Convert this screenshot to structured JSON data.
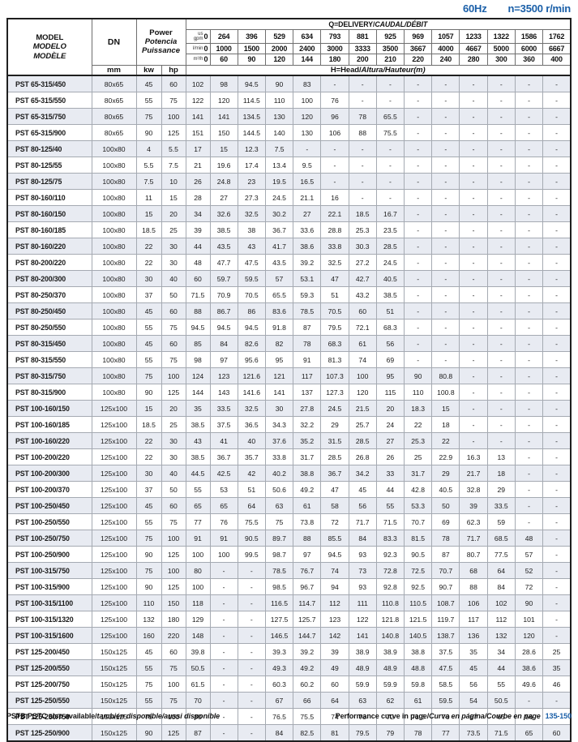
{
  "page_header": {
    "frequency": "60Hz",
    "speed": "n=3500 r/min",
    "accent_color": "#1a5fa8"
  },
  "table": {
    "header": {
      "model_lines": [
        "MODEL",
        "MODELO",
        "MODÈLE"
      ],
      "dn_label": "DN",
      "dn_unit": "mm",
      "power_lines": [
        "Power",
        "Potencia",
        "Puissance"
      ],
      "power_unit_kw": "kw",
      "power_unit_hp": "hp",
      "q_title_normal": "Q=DELIVERY/",
      "q_title_italic": "CAUDAL/DÉBIT",
      "h_title_normal": "H=Head/",
      "h_title_italic": "Altura/Hauteur(m)",
      "flow_rows": [
        {
          "unit": "us gpm",
          "zero": "0",
          "values": [
            "264",
            "396",
            "529",
            "634",
            "793",
            "881",
            "925",
            "969",
            "1057",
            "1233",
            "1322",
            "1586",
            "1762"
          ]
        },
        {
          "unit": "l/min",
          "zero": "0",
          "values": [
            "1000",
            "1500",
            "2000",
            "2400",
            "3000",
            "3333",
            "3500",
            "3667",
            "4000",
            "4667",
            "5000",
            "6000",
            "6667"
          ]
        },
        {
          "unit": "m³/h",
          "zero": "0",
          "values": [
            "60",
            "90",
            "120",
            "144",
            "180",
            "200",
            "210",
            "220",
            "240",
            "280",
            "300",
            "360",
            "400"
          ]
        }
      ]
    },
    "rows": [
      {
        "model": "PST 65-315/450",
        "dn": "80x65",
        "kw": "45",
        "hp": "60",
        "h": [
          "102",
          "98",
          "94.5",
          "90",
          "83",
          "-",
          "-",
          "-",
          "-",
          "-",
          "-",
          "-",
          "-",
          "-"
        ]
      },
      {
        "model": "PST 65-315/550",
        "dn": "80x65",
        "kw": "55",
        "hp": "75",
        "h": [
          "122",
          "120",
          "114.5",
          "110",
          "100",
          "76",
          "-",
          "-",
          "-",
          "-",
          "-",
          "-",
          "-",
          "-"
        ]
      },
      {
        "model": "PST 65-315/750",
        "dn": "80x65",
        "kw": "75",
        "hp": "100",
        "h": [
          "141",
          "141",
          "134.5",
          "130",
          "120",
          "96",
          "78",
          "65.5",
          "-",
          "-",
          "-",
          "-",
          "-",
          "-"
        ]
      },
      {
        "model": "PST 65-315/900",
        "dn": "80x65",
        "kw": "90",
        "hp": "125",
        "h": [
          "151",
          "150",
          "144.5",
          "140",
          "130",
          "106",
          "88",
          "75.5",
          "-",
          "-",
          "-",
          "-",
          "-",
          "-"
        ]
      },
      {
        "model": "PST 80-125/40",
        "dn": "100x80",
        "kw": "4",
        "hp": "5.5",
        "h": [
          "17",
          "15",
          "12.3",
          "7.5",
          "-",
          "-",
          "-",
          "-",
          "-",
          "-",
          "-",
          "-",
          "-",
          "-"
        ],
        "group_start": true
      },
      {
        "model": "PST 80-125/55",
        "dn": "100x80",
        "kw": "5.5",
        "hp": "7.5",
        "h": [
          "21",
          "19.6",
          "17.4",
          "13.4",
          "9.5",
          "-",
          "-",
          "-",
          "-",
          "-",
          "-",
          "-",
          "-",
          "-"
        ]
      },
      {
        "model": "PST 80-125/75",
        "dn": "100x80",
        "kw": "7.5",
        "hp": "10",
        "h": [
          "26",
          "24.8",
          "23",
          "19.5",
          "16.5",
          "-",
          "-",
          "-",
          "-",
          "-",
          "-",
          "-",
          "-",
          "-"
        ]
      },
      {
        "model": "PST 80-160/110",
        "dn": "100x80",
        "kw": "11",
        "hp": "15",
        "h": [
          "28",
          "27",
          "27.3",
          "24.5",
          "21.1",
          "16",
          "-",
          "-",
          "-",
          "-",
          "-",
          "-",
          "-",
          "-"
        ]
      },
      {
        "model": "PST 80-160/150",
        "dn": "100x80",
        "kw": "15",
        "hp": "20",
        "h": [
          "34",
          "32.6",
          "32.5",
          "30.2",
          "27",
          "22.1",
          "18.5",
          "16.7",
          "-",
          "-",
          "-",
          "-",
          "-",
          "-"
        ]
      },
      {
        "model": "PST 80-160/185",
        "dn": "100x80",
        "kw": "18.5",
        "hp": "25",
        "h": [
          "39",
          "38.5",
          "38",
          "36.7",
          "33.6",
          "28.8",
          "25.3",
          "23.5",
          "-",
          "-",
          "-",
          "-",
          "-",
          "-"
        ]
      },
      {
        "model": "PST 80-160/220",
        "dn": "100x80",
        "kw": "22",
        "hp": "30",
        "h": [
          "44",
          "43.5",
          "43",
          "41.7",
          "38.6",
          "33.8",
          "30.3",
          "28.5",
          "-",
          "-",
          "-",
          "-",
          "-",
          "-"
        ]
      },
      {
        "model": "PST 80-200/220",
        "dn": "100x80",
        "kw": "22",
        "hp": "30",
        "h": [
          "48",
          "47.7",
          "47.5",
          "43.5",
          "39.2",
          "32.5",
          "27.2",
          "24.5",
          "-",
          "-",
          "-",
          "-",
          "-",
          "-"
        ]
      },
      {
        "model": "PST 80-200/300",
        "dn": "100x80",
        "kw": "30",
        "hp": "40",
        "h": [
          "60",
          "59.7",
          "59.5",
          "57",
          "53.1",
          "47",
          "42.7",
          "40.5",
          "-",
          "-",
          "-",
          "-",
          "-",
          "-"
        ]
      },
      {
        "model": "PST 80-250/370",
        "dn": "100x80",
        "kw": "37",
        "hp": "50",
        "h": [
          "71.5",
          "70.9",
          "70.5",
          "65.5",
          "59.3",
          "51",
          "43.2",
          "38.5",
          "-",
          "-",
          "-",
          "-",
          "-",
          "-"
        ]
      },
      {
        "model": "PST 80-250/450",
        "dn": "100x80",
        "kw": "45",
        "hp": "60",
        "h": [
          "88",
          "86.7",
          "86",
          "83.6",
          "78.5",
          "70.5",
          "60",
          "51",
          "-",
          "-",
          "-",
          "-",
          "-",
          "-"
        ]
      },
      {
        "model": "PST 80-250/550",
        "dn": "100x80",
        "kw": "55",
        "hp": "75",
        "h": [
          "94.5",
          "94.5",
          "94.5",
          "91.8",
          "87",
          "79.5",
          "72.1",
          "68.3",
          "-",
          "-",
          "-",
          "-",
          "-",
          "-"
        ]
      },
      {
        "model": "PST 80-315/450",
        "dn": "100x80",
        "kw": "45",
        "hp": "60",
        "h": [
          "85",
          "84",
          "82.6",
          "82",
          "78",
          "68.3",
          "61",
          "56",
          "-",
          "-",
          "-",
          "-",
          "-",
          "-"
        ]
      },
      {
        "model": "PST 80-315/550",
        "dn": "100x80",
        "kw": "55",
        "hp": "75",
        "h": [
          "98",
          "97",
          "95.6",
          "95",
          "91",
          "81.3",
          "74",
          "69",
          "-",
          "-",
          "-",
          "-",
          "-",
          "-"
        ]
      },
      {
        "model": "PST 80-315/750",
        "dn": "100x80",
        "kw": "75",
        "hp": "100",
        "h": [
          "124",
          "123",
          "121.6",
          "121",
          "117",
          "107.3",
          "100",
          "95",
          "90",
          "80.8",
          "-",
          "-",
          "-",
          "-"
        ]
      },
      {
        "model": "PST 80-315/900",
        "dn": "100x80",
        "kw": "90",
        "hp": "125",
        "h": [
          "144",
          "143",
          "141.6",
          "141",
          "137",
          "127.3",
          "120",
          "115",
          "110",
          "100.8",
          "-",
          "-",
          "-",
          "-"
        ]
      },
      {
        "model": "PST 100-160/150",
        "dn": "125x100",
        "kw": "15",
        "hp": "20",
        "h": [
          "35",
          "33.5",
          "32.5",
          "30",
          "27.8",
          "24.5",
          "21.5",
          "20",
          "18.3",
          "15",
          "-",
          "-",
          "-",
          "-"
        ],
        "group_start": true
      },
      {
        "model": "PST 100-160/185",
        "dn": "125x100",
        "kw": "18.5",
        "hp": "25",
        "h": [
          "38.5",
          "37.5",
          "36.5",
          "34.3",
          "32.2",
          "29",
          "25.7",
          "24",
          "22",
          "18",
          "-",
          "-",
          "-",
          "-"
        ]
      },
      {
        "model": "PST 100-160/220",
        "dn": "125x100",
        "kw": "22",
        "hp": "30",
        "h": [
          "43",
          "41",
          "40",
          "37.6",
          "35.2",
          "31.5",
          "28.5",
          "27",
          "25.3",
          "22",
          "-",
          "-",
          "-",
          "-"
        ]
      },
      {
        "model": "PST 100-200/220",
        "dn": "125x100",
        "kw": "22",
        "hp": "30",
        "h": [
          "38.5",
          "36.7",
          "35.7",
          "33.8",
          "31.7",
          "28.5",
          "26.8",
          "26",
          "25",
          "22.9",
          "16.3",
          "13",
          "-",
          "-"
        ]
      },
      {
        "model": "PST 100-200/300",
        "dn": "125x100",
        "kw": "30",
        "hp": "40",
        "h": [
          "44.5",
          "42.5",
          "42",
          "40.2",
          "38.8",
          "36.7",
          "34.2",
          "33",
          "31.7",
          "29",
          "21.7",
          "18",
          "-",
          "-"
        ]
      },
      {
        "model": "PST 100-200/370",
        "dn": "125x100",
        "kw": "37",
        "hp": "50",
        "h": [
          "55",
          "53",
          "51",
          "50.6",
          "49.2",
          "47",
          "45",
          "44",
          "42.8",
          "40.5",
          "32.8",
          "29",
          "-",
          "-"
        ]
      },
      {
        "model": "PST 100-250/450",
        "dn": "125x100",
        "kw": "45",
        "hp": "60",
        "h": [
          "65",
          "65",
          "64",
          "63",
          "61",
          "58",
          "56",
          "55",
          "53.3",
          "50",
          "39",
          "33.5",
          "-",
          "-"
        ]
      },
      {
        "model": "PST 100-250/550",
        "dn": "125x100",
        "kw": "55",
        "hp": "75",
        "h": [
          "77",
          "76",
          "75.5",
          "75",
          "73.8",
          "72",
          "71.7",
          "71.5",
          "70.7",
          "69",
          "62.3",
          "59",
          "-",
          "-"
        ]
      },
      {
        "model": "PST 100-250/750",
        "dn": "125x100",
        "kw": "75",
        "hp": "100",
        "h": [
          "91",
          "91",
          "90.5",
          "89.7",
          "88",
          "85.5",
          "84",
          "83.3",
          "81.5",
          "78",
          "71.7",
          "68.5",
          "48",
          "-"
        ]
      },
      {
        "model": "PST 100-250/900",
        "dn": "125x100",
        "kw": "90",
        "hp": "125",
        "h": [
          "100",
          "100",
          "99.5",
          "98.7",
          "97",
          "94.5",
          "93",
          "92.3",
          "90.5",
          "87",
          "80.7",
          "77.5",
          "57",
          "-"
        ]
      },
      {
        "model": "PST 100-315/750",
        "dn": "125x100",
        "kw": "75",
        "hp": "100",
        "h": [
          "80",
          "-",
          "-",
          "78.5",
          "76.7",
          "74",
          "73",
          "72.8",
          "72.5",
          "70.7",
          "68",
          "64",
          "52",
          "-"
        ]
      },
      {
        "model": "PST 100-315/900",
        "dn": "125x100",
        "kw": "90",
        "hp": "125",
        "h": [
          "100",
          "-",
          "-",
          "98.5",
          "96.7",
          "94",
          "93",
          "92.8",
          "92.5",
          "90.7",
          "88",
          "84",
          "72",
          "-"
        ]
      },
      {
        "model": "PST 100-315/1100",
        "dn": "125x100",
        "kw": "110",
        "hp": "150",
        "h": [
          "118",
          "-",
          "-",
          "116.5",
          "114.7",
          "112",
          "111",
          "110.8",
          "110.5",
          "108.7",
          "106",
          "102",
          "90",
          "-"
        ]
      },
      {
        "model": "PST 100-315/1320",
        "dn": "125x100",
        "kw": "132",
        "hp": "180",
        "h": [
          "129",
          "-",
          "-",
          "127.5",
          "125.7",
          "123",
          "122",
          "121.8",
          "121.5",
          "119.7",
          "117",
          "112",
          "101",
          "-"
        ]
      },
      {
        "model": "PST 100-315/1600",
        "dn": "125x100",
        "kw": "160",
        "hp": "220",
        "h": [
          "148",
          "-",
          "-",
          "146.5",
          "144.7",
          "142",
          "141",
          "140.8",
          "140.5",
          "138.7",
          "136",
          "132",
          "120",
          "-"
        ]
      },
      {
        "model": "PST 125-200/450",
        "dn": "150x125",
        "kw": "45",
        "hp": "60",
        "h": [
          "39.8",
          "-",
          "-",
          "39.3",
          "39.2",
          "39",
          "38.9",
          "38.9",
          "38.8",
          "37.5",
          "35",
          "34",
          "28.6",
          "25"
        ],
        "group_start": true
      },
      {
        "model": "PST 125-200/550",
        "dn": "150x125",
        "kw": "55",
        "hp": "75",
        "h": [
          "50.5",
          "-",
          "-",
          "49.3",
          "49.2",
          "49",
          "48.9",
          "48.9",
          "48.8",
          "47.5",
          "45",
          "44",
          "38.6",
          "35"
        ]
      },
      {
        "model": "PST 125-200/750",
        "dn": "150x125",
        "kw": "75",
        "hp": "100",
        "h": [
          "61.5",
          "-",
          "-",
          "60.3",
          "60.2",
          "60",
          "59.9",
          "59.9",
          "59.8",
          "58.5",
          "56",
          "55",
          "49.6",
          "46"
        ]
      },
      {
        "model": "PST 125-250/550",
        "dn": "150x125",
        "kw": "55",
        "hp": "75",
        "h": [
          "70",
          "-",
          "-",
          "67",
          "66",
          "64",
          "63",
          "62",
          "61",
          "59.5",
          "54",
          "50.5",
          "-",
          "-"
        ]
      },
      {
        "model": "PST 125-250/750",
        "dn": "150x125",
        "kw": "75",
        "hp": "100",
        "h": [
          "80",
          "-",
          "-",
          "76.5",
          "75.5",
          "74",
          "73",
          "72",
          "71.5",
          "70",
          "67",
          "65",
          "56",
          "-"
        ]
      },
      {
        "model": "PST 125-250/900",
        "dn": "150x125",
        "kw": "90",
        "hp": "125",
        "h": [
          "87",
          "-",
          "-",
          "84",
          "82.5",
          "81",
          "79.5",
          "79",
          "78",
          "77",
          "73.5",
          "71.5",
          "65",
          "60"
        ]
      }
    ]
  },
  "footer": {
    "left_normal": "PSTB PSTC also available/",
    "left_italic": "también disponible/aussi disponible",
    "right_normal": "Performance curve in page/",
    "right_italic": "Curva en página/Courbe en page",
    "page_ref": "135-150"
  }
}
